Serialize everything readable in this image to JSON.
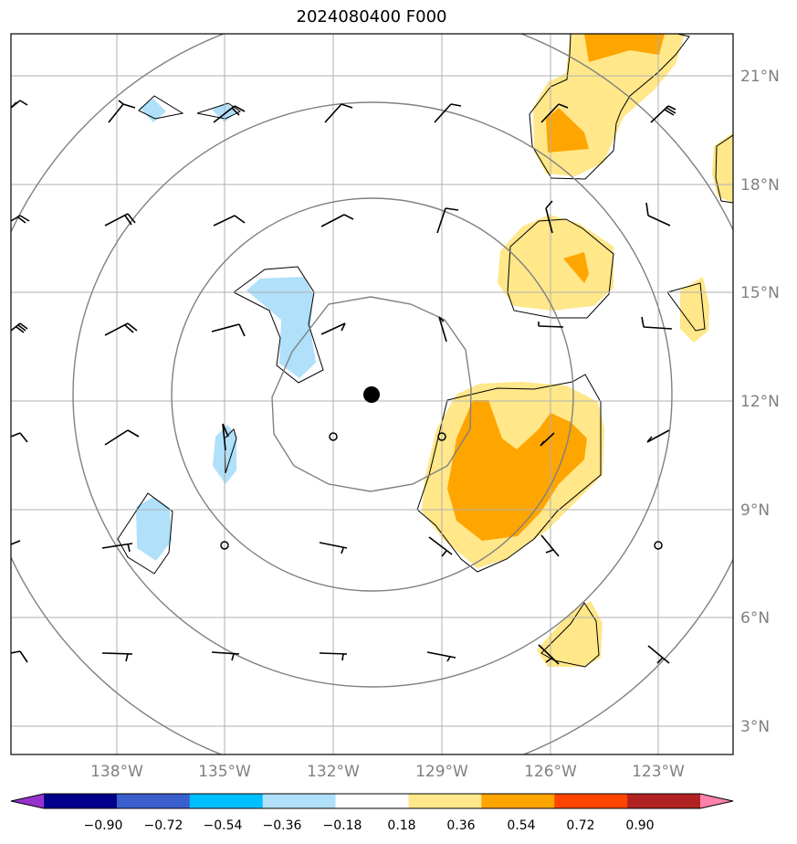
{
  "title": "2024080400 F000",
  "lat_labels": [
    "21°N",
    "18°N",
    "15°N",
    "12°N",
    "9°N",
    "6°N",
    "3°N"
  ],
  "lon_labels": [
    "138°W",
    "135°W",
    "132°W",
    "129°W",
    "126°W",
    "123°W"
  ],
  "colorbar": {
    "ticks": [
      "−0.90",
      "−0.72",
      "−0.54",
      "−0.36",
      "−0.18",
      "0.18",
      "0.36",
      "0.54",
      "0.72",
      "0.90"
    ],
    "colors": [
      "#9932cc",
      "#00008b",
      "#3a5fcd",
      "#00bfff",
      "#b0e0fa",
      "#ffffff",
      "#ffe78a",
      "#ffa500",
      "#ff4500",
      "#b22222",
      "#ff82ab"
    ]
  },
  "fill_colors": {
    "light_blue": "#b0e0fa",
    "light_yellow": "#ffe78a",
    "orange": "#ffa500"
  },
  "center_marker": {
    "lon": -131.0,
    "lat": 12.2
  },
  "range_rings_color": "#808080",
  "grid_color": "#b0b0b0"
}
